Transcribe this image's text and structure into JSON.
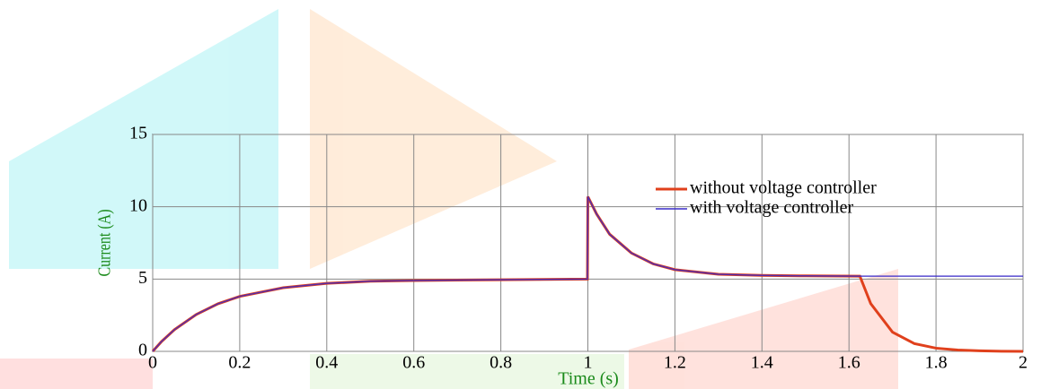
{
  "chart_data": {
    "type": "line",
    "x_label": "Time (s)",
    "y_label": "Current (A)",
    "x": [
      0,
      0.02,
      0.05,
      0.1,
      0.15,
      0.2,
      0.3,
      0.4,
      0.5,
      0.6,
      0.8,
      0.999,
      1.0,
      1.02,
      1.05,
      1.1,
      1.15,
      1.2,
      1.3,
      1.4,
      1.5,
      1.625,
      1.65,
      1.7,
      1.75,
      1.8,
      1.85,
      1.9,
      1.95,
      2.0
    ],
    "series": [
      {
        "name": "without voltage controller",
        "color": "#e0401c",
        "values": [
          0,
          0.67,
          1.5,
          2.55,
          3.29,
          3.8,
          4.4,
          4.7,
          4.85,
          4.9,
          4.95,
          5.0,
          10.7,
          9.5,
          8.1,
          6.8,
          6.05,
          5.65,
          5.33,
          5.25,
          5.22,
          5.2,
          3.3,
          1.33,
          0.54,
          0.22,
          0.09,
          0.035,
          0.01,
          0
        ]
      },
      {
        "name": "with voltage controller",
        "color": "#3a2cc8",
        "values": [
          0,
          0.67,
          1.5,
          2.55,
          3.29,
          3.8,
          4.4,
          4.7,
          4.85,
          4.9,
          4.95,
          5.0,
          10.7,
          9.5,
          8.1,
          6.8,
          6.05,
          5.65,
          5.33,
          5.25,
          5.22,
          5.2,
          5.2,
          5.2,
          5.2,
          5.2,
          5.2,
          5.2,
          5.2,
          5.2
        ]
      }
    ],
    "xlim": [
      0,
      2
    ],
    "xticks": [
      0,
      0.2,
      0.4,
      0.6,
      0.8,
      1,
      1.2,
      1.4,
      1.6,
      1.8,
      2
    ],
    "ylim": [
      0,
      15
    ],
    "yticks": [
      0,
      5,
      10,
      15
    ],
    "grid": true,
    "legend": "upper right"
  }
}
